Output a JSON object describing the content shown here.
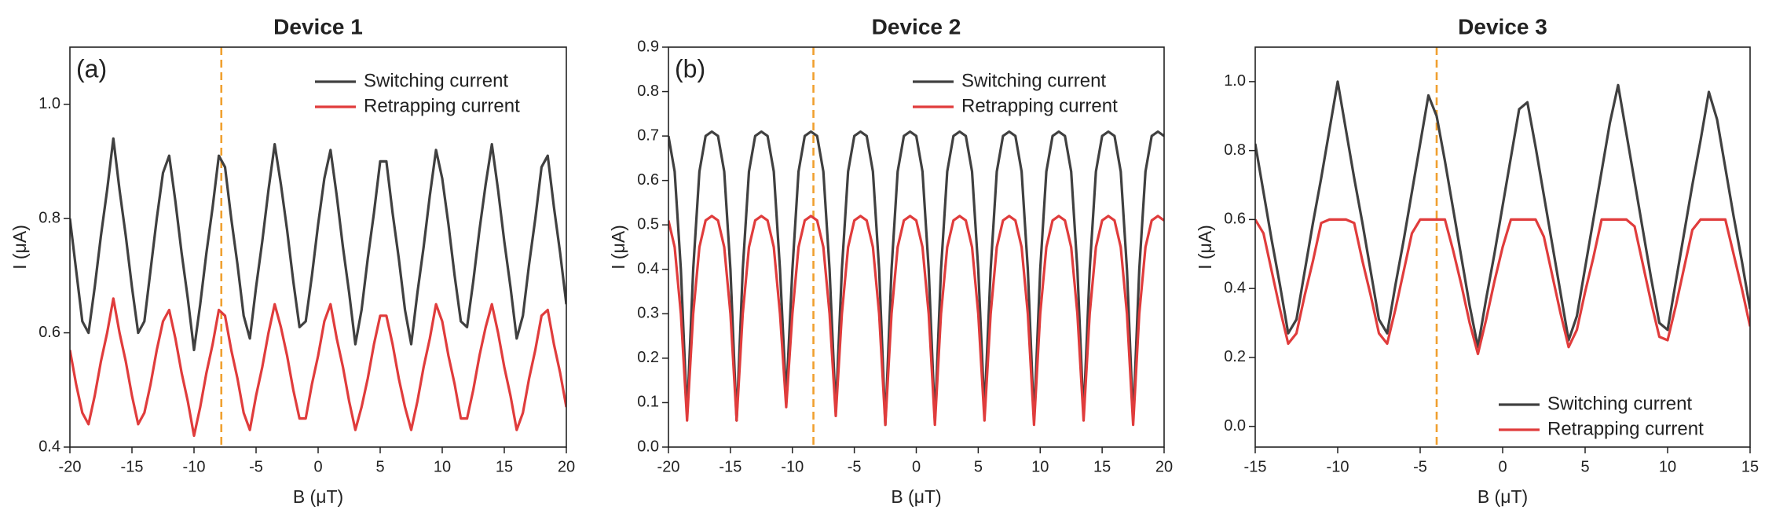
{
  "chart_data": [
    {
      "type": "line",
      "title": "Device 1",
      "panel_label": "(a)",
      "xlabel": "B (μT)",
      "ylabel": "I (μA)",
      "xlim": [
        -20,
        20
      ],
      "xticks": [
        -20,
        -15,
        -10,
        -5,
        0,
        5,
        10,
        15,
        20
      ],
      "ylim": [
        0.4,
        1.1
      ],
      "yticks": [
        0.4,
        0.6,
        0.8,
        {
          "value": 1,
          "label": "1.0"
        }
      ],
      "legend": "upper right",
      "vline": -7.8,
      "vline_color": "#f0a030",
      "x": [
        -20,
        -19.5,
        -19,
        -18.5,
        -18,
        -17.5,
        -17,
        -16.5,
        -16,
        -15.5,
        -15,
        -14.5,
        -14,
        -13.5,
        -13,
        -12.5,
        -12,
        -11.5,
        -11,
        -10.5,
        -10,
        -9.5,
        -9,
        -8.5,
        -8,
        -7.5,
        -7,
        -6.5,
        -6,
        -5.5,
        -5,
        -4.5,
        -4,
        -3.5,
        -3,
        -2.5,
        -2,
        -1.5,
        -1,
        -0.5,
        0,
        0.5,
        1,
        1.5,
        2,
        2.5,
        3,
        3.5,
        4,
        4.5,
        5,
        5.5,
        6,
        6.5,
        7,
        7.5,
        8,
        8.5,
        9,
        9.5,
        10,
        10.5,
        11,
        11.5,
        12,
        12.5,
        13,
        13.5,
        14,
        14.5,
        15,
        15.5,
        16,
        16.5,
        17,
        17.5,
        18,
        18.5,
        19,
        19.5,
        20
      ],
      "series": [
        {
          "name": "Switching current",
          "color": "#404040",
          "values": [
            0.8,
            0.71,
            0.62,
            0.6,
            0.68,
            0.77,
            0.85,
            0.94,
            0.85,
            0.77,
            0.68,
            0.6,
            0.62,
            0.71,
            0.8,
            0.88,
            0.91,
            0.83,
            0.74,
            0.66,
            0.57,
            0.65,
            0.74,
            0.82,
            0.91,
            0.89,
            0.8,
            0.72,
            0.63,
            0.59,
            0.68,
            0.76,
            0.85,
            0.93,
            0.86,
            0.78,
            0.69,
            0.61,
            0.62,
            0.7,
            0.79,
            0.87,
            0.92,
            0.84,
            0.75,
            0.67,
            0.58,
            0.64,
            0.73,
            0.81,
            0.9,
            0.9,
            0.81,
            0.73,
            0.64,
            0.58,
            0.67,
            0.75,
            0.84,
            0.92,
            0.87,
            0.79,
            0.7,
            0.62,
            0.61,
            0.69,
            0.78,
            0.86,
            0.93,
            0.85,
            0.76,
            0.68,
            0.59,
            0.63,
            0.72,
            0.8,
            0.89,
            0.91,
            0.82,
            0.74,
            0.65
          ]
        },
        {
          "name": "Retrapping current",
          "color": "#e03c3c",
          "values": [
            0.57,
            0.51,
            0.46,
            0.44,
            0.49,
            0.55,
            0.6,
            0.66,
            0.6,
            0.55,
            0.49,
            0.44,
            0.46,
            0.51,
            0.57,
            0.62,
            0.64,
            0.59,
            0.53,
            0.48,
            0.42,
            0.47,
            0.53,
            0.58,
            0.64,
            0.63,
            0.57,
            0.52,
            0.46,
            0.43,
            0.49,
            0.54,
            0.6,
            0.65,
            0.61,
            0.56,
            0.5,
            0.45,
            0.45,
            0.51,
            0.56,
            0.62,
            0.65,
            0.59,
            0.54,
            0.48,
            0.43,
            0.47,
            0.52,
            0.58,
            0.63,
            0.63,
            0.58,
            0.52,
            0.47,
            0.43,
            0.48,
            0.54,
            0.59,
            0.65,
            0.62,
            0.56,
            0.51,
            0.45,
            0.45,
            0.5,
            0.56,
            0.61,
            0.65,
            0.6,
            0.54,
            0.49,
            0.43,
            0.46,
            0.52,
            0.57,
            0.63,
            0.64,
            0.58,
            0.53,
            0.47
          ]
        }
      ]
    },
    {
      "type": "line",
      "title": "Device 2",
      "panel_label": "(b)",
      "xlabel": "B (μT)",
      "ylabel": "I (μA)",
      "xlim": [
        -20,
        20
      ],
      "xticks": [
        -20,
        -15,
        -10,
        -5,
        0,
        5,
        10,
        15,
        20
      ],
      "ylim": [
        0,
        0.9
      ],
      "yticks": [
        {
          "value": 0,
          "label": "0.0"
        },
        0.1,
        0.2,
        0.3,
        0.4,
        0.5,
        0.6,
        0.7,
        0.8,
        0.9
      ],
      "legend": "upper right",
      "vline": -8.3,
      "vline_color": "#f0a030",
      "x": [
        -20,
        -19.5,
        -19,
        -18.5,
        -18,
        -17.5,
        -17,
        -16.5,
        -16,
        -15.5,
        -15,
        -14.5,
        -14,
        -13.5,
        -13,
        -12.5,
        -12,
        -11.5,
        -11,
        -10.5,
        -10,
        -9.5,
        -9,
        -8.5,
        -8,
        -7.5,
        -7,
        -6.5,
        -6,
        -5.5,
        -5,
        -4.5,
        -4,
        -3.5,
        -3,
        -2.5,
        -2,
        -1.5,
        -1,
        -0.5,
        0,
        0.5,
        1,
        1.5,
        2,
        2.5,
        3,
        3.5,
        4,
        4.5,
        5,
        5.5,
        6,
        6.5,
        7,
        7.5,
        8,
        8.5,
        9,
        9.5,
        10,
        10.5,
        11,
        11.5,
        12,
        12.5,
        13,
        13.5,
        14,
        14.5,
        15,
        15.5,
        16,
        16.5,
        17,
        17.5,
        18,
        18.5,
        19,
        19.5,
        20
      ],
      "series": [
        {
          "name": "Switching current",
          "color": "#404040",
          "values": [
            0.7,
            0.62,
            0.4,
            0.07,
            0.4,
            0.62,
            0.7,
            0.71,
            0.7,
            0.62,
            0.4,
            0.06,
            0.4,
            0.62,
            0.7,
            0.71,
            0.7,
            0.62,
            0.4,
            0.11,
            0.4,
            0.62,
            0.7,
            0.71,
            0.7,
            0.62,
            0.4,
            0.08,
            0.4,
            0.62,
            0.7,
            0.71,
            0.7,
            0.62,
            0.4,
            0.05,
            0.4,
            0.62,
            0.7,
            0.71,
            0.7,
            0.62,
            0.4,
            0.06,
            0.4,
            0.62,
            0.7,
            0.71,
            0.7,
            0.62,
            0.4,
            0.08,
            0.4,
            0.62,
            0.7,
            0.71,
            0.7,
            0.62,
            0.4,
            0.06,
            0.4,
            0.62,
            0.7,
            0.71,
            0.7,
            0.62,
            0.4,
            0.07,
            0.4,
            0.62,
            0.7,
            0.71,
            0.7,
            0.62,
            0.4,
            0.06,
            0.4,
            0.62,
            0.7,
            0.71,
            0.7
          ]
        },
        {
          "name": "Retrapping current",
          "color": "#e03c3c",
          "values": [
            0.51,
            0.45,
            0.3,
            0.06,
            0.3,
            0.45,
            0.51,
            0.52,
            0.51,
            0.45,
            0.3,
            0.06,
            0.3,
            0.45,
            0.51,
            0.52,
            0.51,
            0.45,
            0.3,
            0.09,
            0.3,
            0.45,
            0.51,
            0.52,
            0.51,
            0.45,
            0.3,
            0.07,
            0.3,
            0.45,
            0.51,
            0.52,
            0.51,
            0.45,
            0.3,
            0.05,
            0.3,
            0.45,
            0.51,
            0.52,
            0.51,
            0.45,
            0.3,
            0.05,
            0.3,
            0.45,
            0.51,
            0.52,
            0.51,
            0.45,
            0.3,
            0.06,
            0.3,
            0.45,
            0.51,
            0.52,
            0.51,
            0.45,
            0.3,
            0.05,
            0.3,
            0.45,
            0.51,
            0.52,
            0.51,
            0.45,
            0.3,
            0.06,
            0.3,
            0.45,
            0.51,
            0.52,
            0.51,
            0.45,
            0.3,
            0.05,
            0.3,
            0.45,
            0.51,
            0.52,
            0.51
          ]
        }
      ]
    },
    {
      "type": "line",
      "title": "Device 3",
      "xlabel": "B (μT)",
      "ylabel": "I (μA)",
      "xlim": [
        -15,
        15
      ],
      "xticks": [
        -15,
        -10,
        -5,
        0,
        5,
        10,
        15
      ],
      "ylim": [
        -0.06,
        1.1
      ],
      "yticks": [
        {
          "value": 0,
          "label": "0.0"
        },
        0.2,
        0.4,
        0.6,
        0.8,
        {
          "value": 1,
          "label": "1.0"
        }
      ],
      "legend": "lower right",
      "vline": -4,
      "vline_color": "#f0a030",
      "x": [
        -15,
        -14.5,
        -14,
        -13.5,
        -13,
        -12.5,
        -12,
        -11.5,
        -11,
        -10.5,
        -10,
        -9.5,
        -9,
        -8.5,
        -8,
        -7.5,
        -7,
        -6.5,
        -6,
        -5.5,
        -5,
        -4.5,
        -4,
        -3.5,
        -3,
        -2.5,
        -2,
        -1.5,
        -1,
        -0.5,
        0,
        0.5,
        1,
        1.5,
        2,
        2.5,
        3,
        3.5,
        4,
        4.5,
        5,
        5.5,
        6,
        6.5,
        7,
        7.5,
        8,
        8.5,
        9,
        9.5,
        10,
        10.5,
        11,
        11.5,
        12,
        12.5,
        13,
        13.5,
        14,
        14.5,
        15
      ],
      "series": [
        {
          "name": "Switching current",
          "color": "#404040",
          "values": [
            0.82,
            0.68,
            0.54,
            0.41,
            0.27,
            0.31,
            0.45,
            0.59,
            0.72,
            0.86,
            1.0,
            0.86,
            0.72,
            0.59,
            0.45,
            0.31,
            0.27,
            0.41,
            0.54,
            0.68,
            0.82,
            0.96,
            0.9,
            0.77,
            0.63,
            0.49,
            0.35,
            0.23,
            0.37,
            0.5,
            0.64,
            0.78,
            0.92,
            0.94,
            0.81,
            0.67,
            0.53,
            0.39,
            0.25,
            0.32,
            0.46,
            0.6,
            0.74,
            0.88,
            0.99,
            0.85,
            0.71,
            0.57,
            0.43,
            0.3,
            0.28,
            0.42,
            0.56,
            0.7,
            0.83,
            0.97,
            0.89,
            0.75,
            0.61,
            0.48,
            0.34
          ]
        },
        {
          "name": "Retrapping current",
          "color": "#e03c3c",
          "values": [
            0.6,
            0.56,
            0.45,
            0.34,
            0.24,
            0.27,
            0.38,
            0.48,
            0.59,
            0.6,
            0.6,
            0.6,
            0.59,
            0.48,
            0.38,
            0.27,
            0.24,
            0.34,
            0.45,
            0.56,
            0.6,
            0.6,
            0.6,
            0.6,
            0.51,
            0.41,
            0.3,
            0.21,
            0.31,
            0.42,
            0.52,
            0.6,
            0.6,
            0.6,
            0.6,
            0.55,
            0.44,
            0.33,
            0.23,
            0.28,
            0.39,
            0.49,
            0.6,
            0.6,
            0.6,
            0.6,
            0.58,
            0.47,
            0.36,
            0.26,
            0.25,
            0.35,
            0.46,
            0.57,
            0.6,
            0.6,
            0.6,
            0.6,
            0.5,
            0.4,
            0.29
          ]
        }
      ]
    }
  ]
}
